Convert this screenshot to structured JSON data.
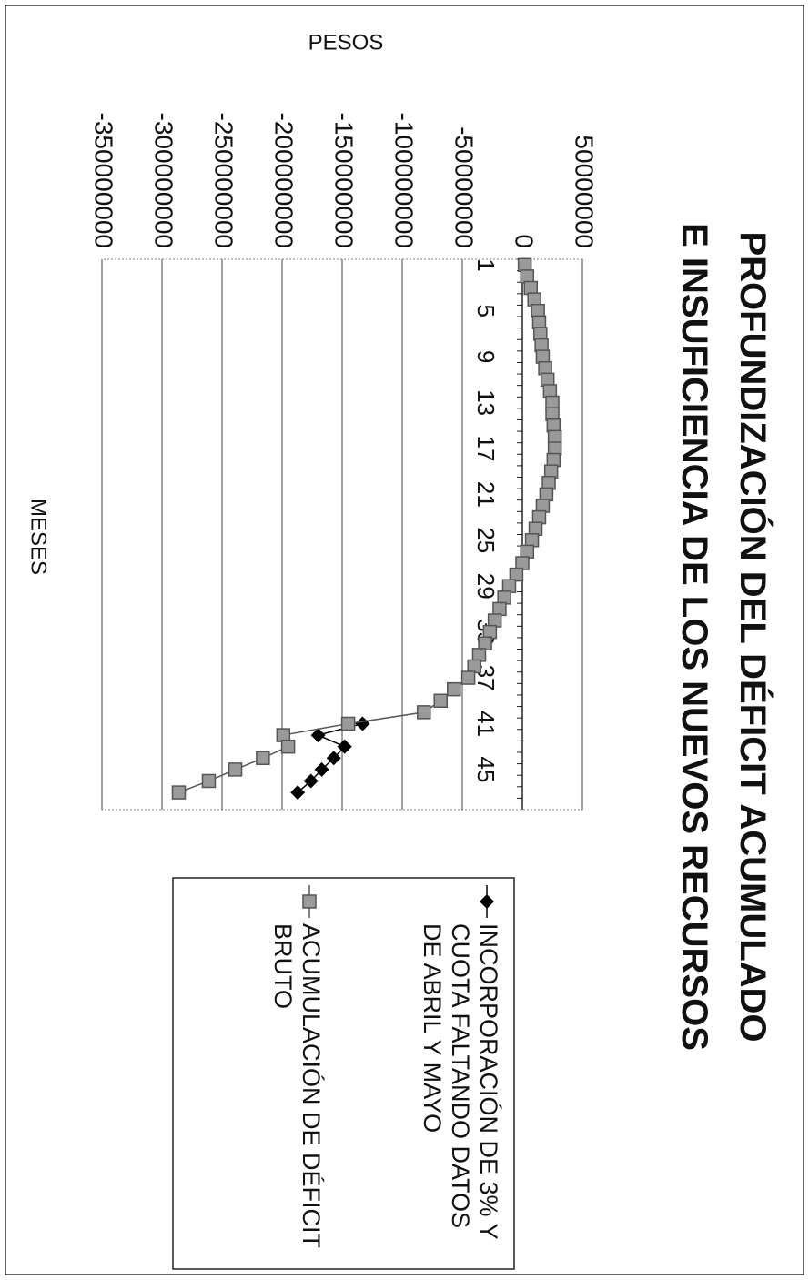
{
  "chart_data": {
    "type": "line",
    "title": "PROFUNDIZACIÓN DEL DÉFICIT ACUMULADO E INSUFICIENCIA DE LOS NUEVOS RECURSOS",
    "x_label": "MESES",
    "y_label": "PESOS",
    "categories": [
      "1",
      null,
      null,
      null,
      "5",
      null,
      null,
      null,
      "9",
      null,
      null,
      null,
      "13",
      null,
      null,
      null,
      "17",
      null,
      null,
      null,
      "21",
      null,
      null,
      null,
      "25",
      null,
      null,
      null,
      "29",
      null,
      null,
      null,
      "33",
      null,
      null,
      null,
      "37",
      null,
      null,
      null,
      "41",
      null,
      null,
      null,
      "45",
      null,
      null,
      null
    ],
    "ylim": [
      -350000000,
      50000000
    ],
    "yticks": [
      -350000000,
      -300000000,
      -250000000,
      -200000000,
      -150000000,
      -100000000,
      -50000000,
      0,
      50000000
    ],
    "grid": true,
    "legend": "right",
    "series": [
      {
        "name": "INCORPORACIÓN DE 3% Y CUOTA FALTANDO DATOS DE ABRIL Y MAYO",
        "color": "#000000",
        "marker": "diamond",
        "values": [
          null,
          null,
          null,
          null,
          null,
          null,
          null,
          null,
          null,
          null,
          null,
          null,
          null,
          null,
          null,
          null,
          null,
          null,
          null,
          null,
          null,
          null,
          null,
          null,
          null,
          null,
          null,
          null,
          null,
          null,
          null,
          null,
          null,
          null,
          null,
          null,
          null,
          null,
          null,
          null,
          -133000000,
          -170000000,
          -148000000,
          -157000000,
          -167000000,
          -176000000,
          -187000000,
          null
        ]
      },
      {
        "name": "ACUMULACIÓN DE DÉFICIT BRUTO",
        "color": "#555555",
        "marker": "square",
        "values": [
          2000000,
          4000000,
          7000000,
          10000000,
          13000000,
          14000000,
          15000000,
          16000000,
          17000000,
          19000000,
          21000000,
          23000000,
          25000000,
          25000000,
          26000000,
          27000000,
          27000000,
          26000000,
          24000000,
          22000000,
          20000000,
          17000000,
          14000000,
          11000000,
          8000000,
          4000000,
          0,
          -5000000,
          -11000000,
          -15000000,
          -19000000,
          -23000000,
          -27000000,
          -31000000,
          -36000000,
          -40000000,
          -45000000,
          -57000000,
          -68000000,
          -82000000,
          -145000000,
          -199000000,
          -195000000,
          -216000000,
          -239000000,
          -261000000,
          -286000000,
          null
        ]
      }
    ]
  }
}
